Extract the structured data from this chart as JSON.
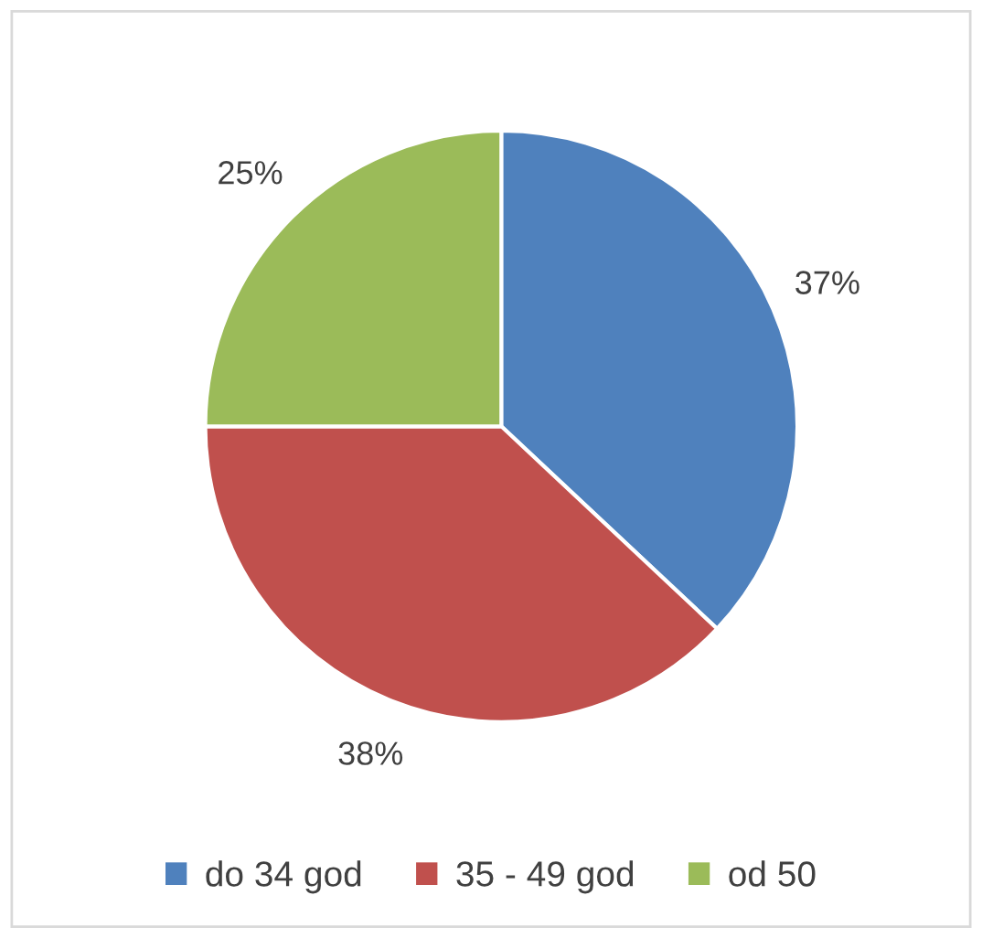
{
  "chart_data": {
    "type": "pie",
    "categories": [
      "do 34 god",
      "35 - 49 god",
      "od 50"
    ],
    "values": [
      37,
      38,
      25
    ],
    "value_labels": [
      "37%",
      "38%",
      "25%"
    ],
    "colors": [
      "#4f81bd",
      "#c0504d",
      "#9bbb59"
    ],
    "legend": "bottom"
  }
}
